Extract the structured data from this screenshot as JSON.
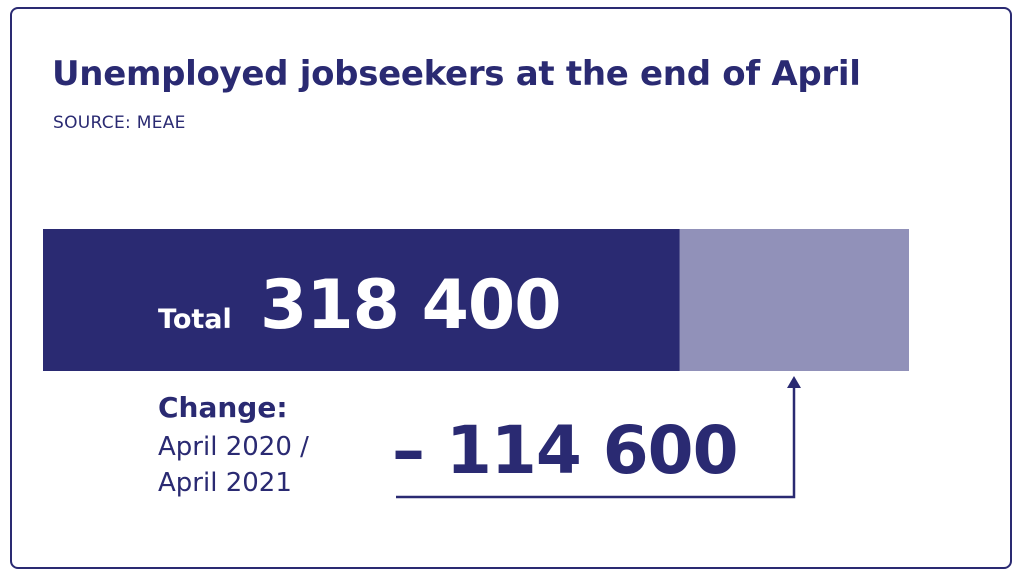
{
  "title": "Unemployed jobseekers at the end of April",
  "source": "SOURCE: MEAE",
  "colors": {
    "primary": "#2a2a72",
    "secondary": "#9191b9"
  },
  "chart_data": {
    "type": "bar",
    "orientation": "horizontal",
    "stacked": true,
    "series": [
      {
        "values": [
          318400
        ]
      },
      {
        "values": [
          114600
        ]
      }
    ],
    "total_label": "Total",
    "total_value": "318 400",
    "change_title": "Change:",
    "change_period_line1": "April 2020 /",
    "change_period_line2": "April 2021",
    "change_value": "– 114 600"
  }
}
